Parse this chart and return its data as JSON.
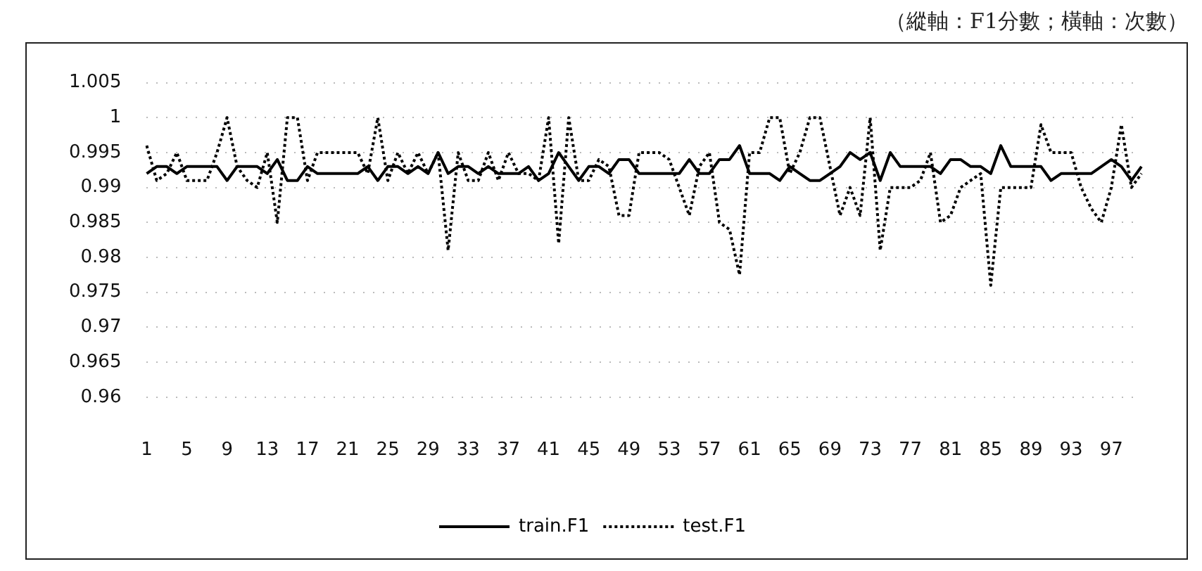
{
  "chart_data": {
    "type": "line",
    "annotations": [
      "（縱軸：F1分數；橫軸：次數）"
    ],
    "categories": [
      "1",
      null,
      null,
      null,
      "5",
      null,
      null,
      null,
      "9",
      null,
      null,
      null,
      "13",
      null,
      null,
      null,
      "17",
      null,
      null,
      null,
      "21",
      null,
      null,
      null,
      "25",
      null,
      null,
      null,
      "29",
      null,
      null,
      null,
      "33",
      null,
      null,
      null,
      "37",
      null,
      null,
      null,
      "41",
      null,
      null,
      null,
      "45",
      null,
      null,
      null,
      "49",
      null,
      null,
      null,
      "53",
      null,
      null,
      null,
      "57",
      null,
      null,
      null,
      "61",
      null,
      null,
      null,
      "65",
      null,
      null,
      null,
      "69",
      null,
      null,
      null,
      "73",
      null,
      null,
      null,
      "77",
      null,
      null,
      null,
      "81",
      null,
      null,
      null,
      "85",
      null,
      null,
      null,
      "89",
      null,
      null,
      null,
      "93",
      null,
      null,
      null,
      "97",
      null,
      null,
      null
    ],
    "series": [
      {
        "name": "train.F1",
        "color": "#000000",
        "line_style": "solid",
        "values": [
          0.992,
          0.993,
          0.993,
          0.992,
          0.993,
          0.993,
          0.993,
          0.993,
          0.991,
          0.993,
          0.993,
          0.993,
          0.992,
          0.994,
          0.991,
          0.991,
          0.993,
          0.992,
          0.992,
          0.992,
          0.992,
          0.992,
          0.993,
          0.991,
          0.993,
          0.993,
          0.992,
          0.993,
          0.992,
          0.995,
          0.992,
          0.993,
          0.993,
          0.992,
          0.993,
          0.992,
          0.992,
          0.992,
          0.993,
          0.991,
          0.992,
          0.995,
          0.993,
          0.991,
          0.993,
          0.993,
          0.992,
          0.994,
          0.994,
          0.992,
          0.992,
          0.992,
          0.992,
          0.992,
          0.994,
          0.992,
          0.992,
          0.994,
          0.994,
          0.996,
          0.992,
          0.992,
          0.992,
          0.991,
          0.993,
          0.992,
          0.991,
          0.991,
          0.992,
          0.993,
          0.995,
          0.994,
          0.995,
          0.991,
          0.995,
          0.993,
          0.993,
          0.993,
          0.993,
          0.992,
          0.994,
          0.994,
          0.993,
          0.993,
          0.992,
          0.996,
          0.993,
          0.993,
          0.993,
          0.993,
          0.991,
          0.992,
          0.992,
          0.992,
          0.992,
          0.993,
          0.994,
          0.993,
          0.991,
          0.993
        ]
      },
      {
        "name": "test.F1",
        "color": "#000000",
        "line_style": "dotted",
        "values": [
          0.996,
          0.991,
          0.992,
          0.995,
          0.991,
          0.991,
          0.991,
          0.995,
          1.0,
          0.993,
          0.991,
          0.99,
          0.995,
          0.985,
          1.0,
          1.0,
          0.991,
          0.995,
          0.995,
          0.995,
          0.995,
          0.995,
          0.992,
          1.0,
          0.991,
          0.995,
          0.992,
          0.995,
          0.992,
          0.995,
          0.981,
          0.995,
          0.991,
          0.991,
          0.995,
          0.991,
          0.995,
          0.992,
          0.992,
          0.991,
          1.0,
          0.982,
          1.0,
          0.991,
          0.991,
          0.994,
          0.993,
          0.986,
          0.986,
          0.995,
          0.995,
          0.995,
          0.994,
          0.99,
          0.986,
          0.993,
          0.995,
          0.985,
          0.984,
          0.9775,
          0.995,
          0.995,
          1.0,
          1.0,
          0.992,
          0.995,
          1.0,
          1.0,
          0.993,
          0.986,
          0.99,
          0.986,
          1.0,
          0.981,
          0.99,
          0.99,
          0.99,
          0.991,
          0.995,
          0.985,
          0.986,
          0.99,
          0.991,
          0.992,
          0.976,
          0.99,
          0.99,
          0.99,
          0.99,
          0.999,
          0.995,
          0.995,
          0.995,
          0.99,
          0.987,
          0.985,
          0.99,
          0.999,
          0.99,
          0.992
        ]
      }
    ],
    "ylim": [
      0.96,
      1.005
    ],
    "yticks": [
      0.96,
      0.965,
      0.97,
      0.975,
      0.98,
      0.985,
      0.99,
      0.995,
      1,
      1.005
    ],
    "grid": "y",
    "legend": "bottom",
    "marker": "none"
  }
}
